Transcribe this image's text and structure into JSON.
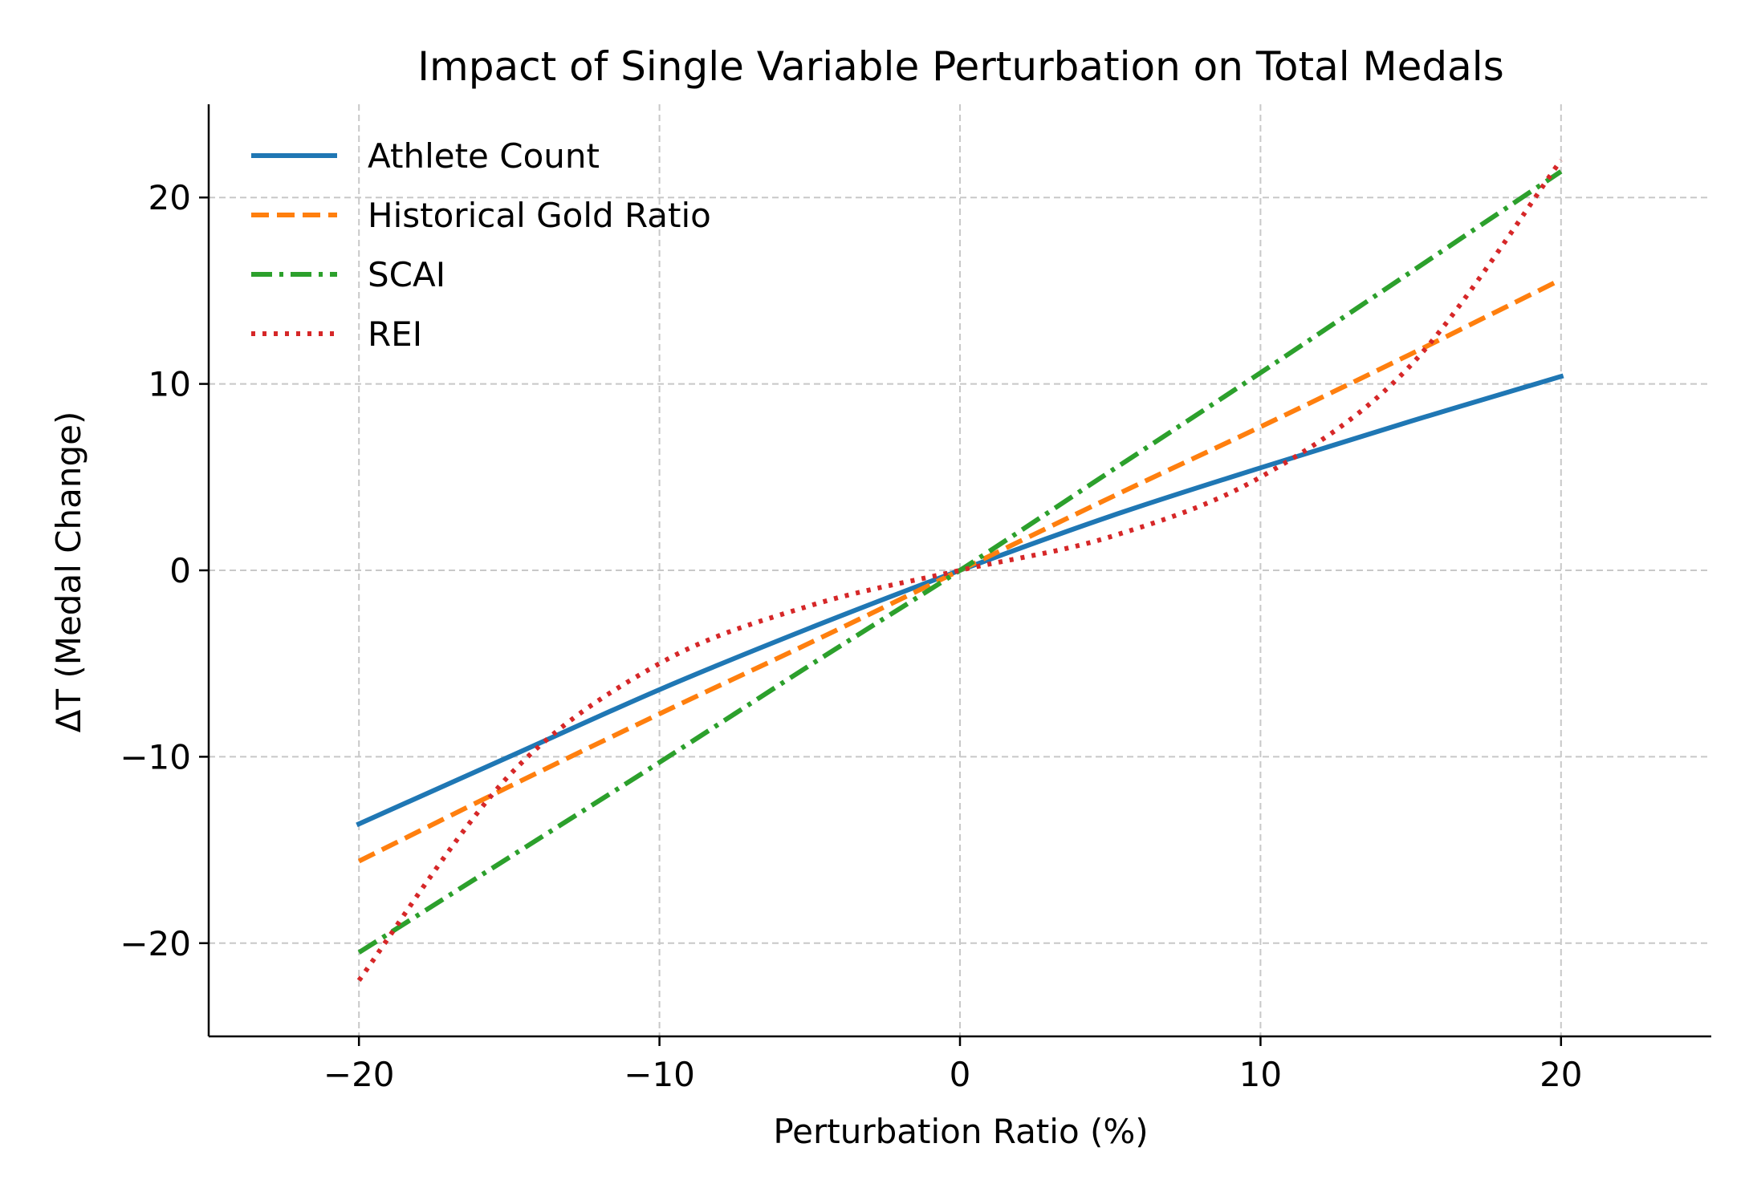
{
  "chart_data": {
    "type": "line",
    "title": "Impact of Single Variable Perturbation on Total Medals",
    "xlabel": "Perturbation Ratio (%)",
    "ylabel": "ΔT (Medal Change)",
    "xlim": [
      -25,
      25
    ],
    "ylim": [
      -25,
      25
    ],
    "xticks": [
      -20,
      -10,
      0,
      10,
      20
    ],
    "yticks": [
      -20,
      -10,
      0,
      10,
      20
    ],
    "xtick_labels": [
      "−20",
      "−10",
      "0",
      "10",
      "20"
    ],
    "ytick_labels": [
      "−20",
      "−10",
      "0",
      "10",
      "20"
    ],
    "grid": true,
    "legend_position": "top-left",
    "x": [
      -20,
      -15,
      -10,
      -5,
      0,
      5,
      10,
      15,
      20
    ],
    "series": [
      {
        "name": "Athlete Count",
        "color": "#1f77b4",
        "style": "solid",
        "values": [
          -13.6,
          -10.0,
          -6.4,
          -3.1,
          0.0,
          2.9,
          5.5,
          8.0,
          10.4
        ]
      },
      {
        "name": "Historical Gold Ratio",
        "color": "#ff7f0e",
        "style": "dashed",
        "values": [
          -15.6,
          -11.6,
          -7.7,
          -3.9,
          0.0,
          3.9,
          7.7,
          11.6,
          15.6
        ]
      },
      {
        "name": "SCAI",
        "color": "#2ca02c",
        "style": "dashdot",
        "values": [
          -20.5,
          -15.4,
          -10.3,
          -5.1,
          0.0,
          5.3,
          10.6,
          16.0,
          21.4
        ]
      },
      {
        "name": "REI",
        "color": "#d62728",
        "style": "dotted",
        "values": [
          -22.0,
          -11.0,
          -5.0,
          -1.9,
          0.0,
          1.8,
          5.0,
          11.0,
          22.0
        ]
      }
    ]
  }
}
